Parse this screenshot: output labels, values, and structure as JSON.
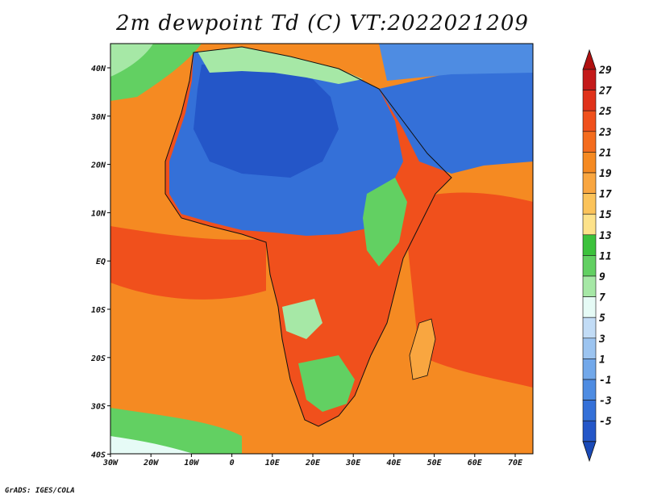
{
  "title": "2m dewpoint Td (C) VT:2022021209",
  "credit": "GrADS: IGES/COLA",
  "map": {
    "x_ticks": [
      "30W",
      "20W",
      "10W",
      "0",
      "10E",
      "20E",
      "30E",
      "40E",
      "50E",
      "60E",
      "70E"
    ],
    "y_ticks": [
      "40N",
      "30N",
      "20N",
      "10N",
      "EQ",
      "10S",
      "20S",
      "30S",
      "40S"
    ]
  },
  "colorbar": {
    "labels": [
      "29",
      "27",
      "25",
      "23",
      "21",
      "19",
      "17",
      "15",
      "13",
      "11",
      "9",
      "7",
      "5",
      "3",
      "1",
      "-1",
      "-3",
      "-5"
    ],
    "colors": [
      "#c41a1a",
      "#e0321a",
      "#f0501c",
      "#f46c1e",
      "#f58a22",
      "#f9a640",
      "#fbc35a",
      "#fde28a",
      "#3cc23c",
      "#62d062",
      "#a6e8a6",
      "#e6fbf6",
      "#c2dcf6",
      "#9cc4f0",
      "#72a8ea",
      "#4e8ce2",
      "#3470d8",
      "#2456c8"
    ],
    "low_arrow_color": "#1a4ab8",
    "high_arrow_color": "#b01010"
  },
  "region_colors": {
    "ocean": "#f58a22",
    "deep_warm": "#f0501c",
    "sahara": "#3470d8",
    "green": "#62d062",
    "light_blue": "#9cc4f0"
  }
}
